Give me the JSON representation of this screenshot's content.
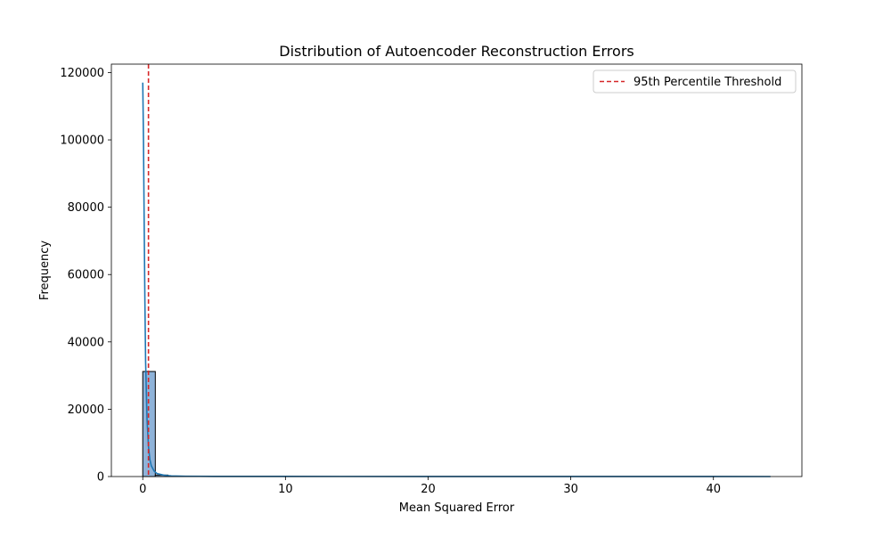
{
  "chart_data": {
    "type": "bar",
    "title": "Distribution of Autoencoder Reconstruction Errors",
    "xlabel": "Mean Squared Error",
    "ylabel": "Frequency",
    "xlim": [
      -2.2,
      46.2
    ],
    "ylim": [
      0,
      122500
    ],
    "x_ticks": [
      0,
      10,
      20,
      30,
      40
    ],
    "y_ticks": [
      0,
      20000,
      40000,
      60000,
      80000,
      100000,
      120000
    ],
    "bins": [
      {
        "x0": 0.0,
        "x1": 0.88,
        "count": 31200
      },
      {
        "x0": 0.88,
        "x1": 1.76,
        "count": 450
      },
      {
        "x0": 1.76,
        "x1": 2.64,
        "count": 120
      },
      {
        "x0": 2.64,
        "x1": 3.52,
        "count": 60
      },
      {
        "x0": 3.52,
        "x1": 4.4,
        "count": 30
      }
    ],
    "bar_color": "#8fb3d9",
    "bar_edge_color": "#000000",
    "kde": {
      "color": "#1f77b4",
      "points": [
        [
          0.0,
          117000
        ],
        [
          0.05,
          100000
        ],
        [
          0.1,
          75000
        ],
        [
          0.15,
          52000
        ],
        [
          0.2,
          34000
        ],
        [
          0.3,
          17000
        ],
        [
          0.4,
          9000
        ],
        [
          0.5,
          5000
        ],
        [
          0.6,
          3200
        ],
        [
          0.8,
          1600
        ],
        [
          1.0,
          900
        ],
        [
          1.5,
          400
        ],
        [
          2.0,
          200
        ],
        [
          3.0,
          100
        ],
        [
          5.0,
          60
        ],
        [
          10.0,
          40
        ],
        [
          20.0,
          30
        ],
        [
          30.0,
          25
        ],
        [
          40.0,
          25
        ],
        [
          44.0,
          0
        ]
      ]
    },
    "threshold": {
      "x": 0.4,
      "label": "95th Percentile Threshold",
      "color": "#d62728"
    },
    "legend_position": "top-right",
    "grid": false
  }
}
